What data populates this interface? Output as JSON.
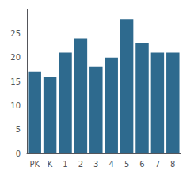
{
  "chart_data": {
    "type": "bar",
    "categories": [
      "PK",
      "K",
      "1",
      "2",
      "3",
      "4",
      "5",
      "6",
      "7",
      "8"
    ],
    "values": [
      17,
      16,
      21,
      24,
      18,
      20,
      28,
      23,
      21,
      21
    ],
    "color": "#2e6a8e",
    "ylim": [
      0,
      30
    ],
    "yticks": [
      0,
      5,
      10,
      15,
      20,
      25
    ],
    "grid": false
  }
}
